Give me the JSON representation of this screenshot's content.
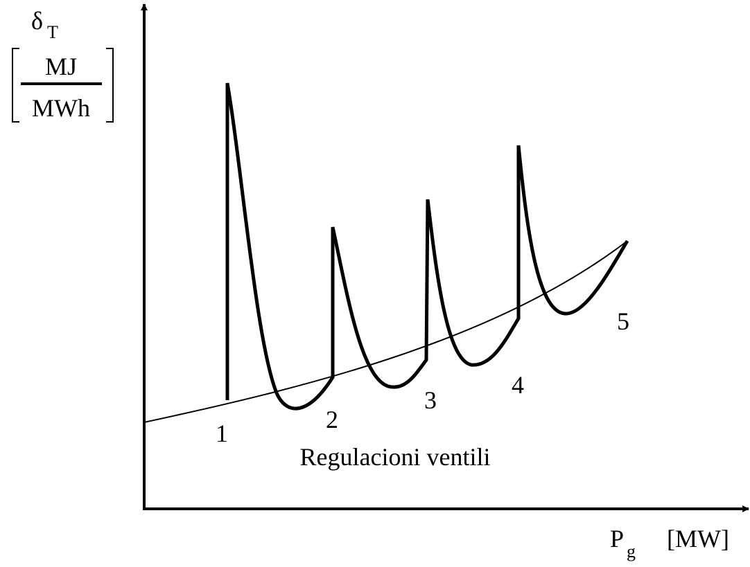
{
  "axis_label_y": {
    "symbol": "δ",
    "subscript": "T",
    "numerator": "MJ",
    "denominator": "MWh"
  },
  "axis_label_x": {
    "symbol": "P",
    "subscript": "g",
    "unit": "[MW]"
  },
  "point_labels": [
    "1",
    "2",
    "3",
    "4",
    "5"
  ],
  "annotation": "Regulacioni ventili"
}
